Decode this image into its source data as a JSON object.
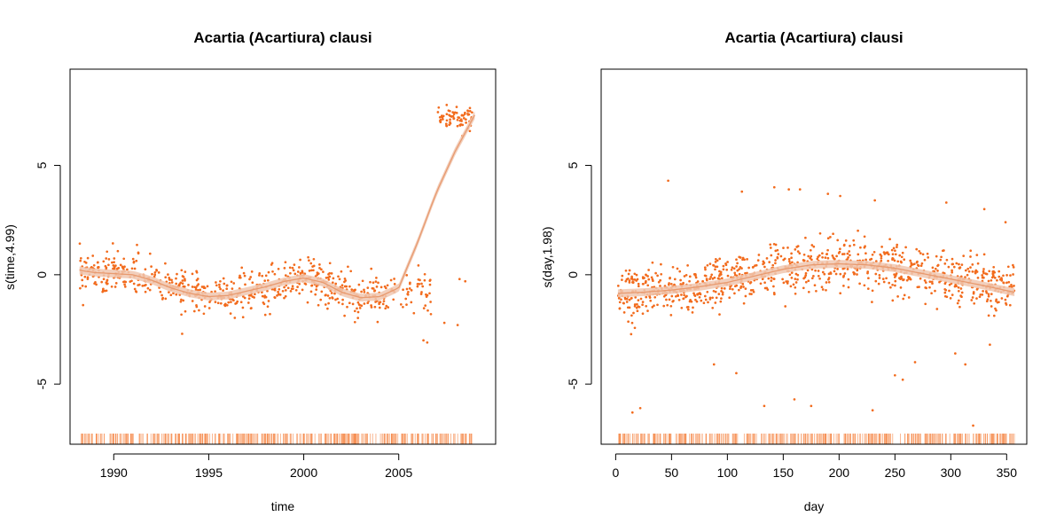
{
  "colors": {
    "points": "#f26b1d",
    "rug": "#f58a4b",
    "smooth": "#e89a6f",
    "band": "#f0c7b0",
    "axis": "#000000"
  },
  "chart_data": [
    {
      "type": "scatter",
      "title": "Acartia (Acartiura) clausi",
      "xlabel": "time",
      "ylabel": "s(time,4.99)",
      "xlim": [
        1987.7,
        2010.1
      ],
      "ylim": [
        -7.75,
        9.4
      ],
      "xticks": [
        1990,
        1995,
        2000,
        2005
      ],
      "yticks": [
        -5,
        0,
        5
      ],
      "grid": false,
      "smooth": {
        "name": "fit",
        "x": [
          1988.2,
          1989,
          1990,
          1991,
          1992,
          1993,
          1994,
          1995,
          1996,
          1997,
          1998,
          1999,
          2000,
          2001,
          2002,
          2003,
          2004,
          2005,
          2006,
          2007,
          2008,
          2009
        ],
        "y": [
          0.2,
          0.1,
          0.05,
          0.0,
          -0.25,
          -0.6,
          -0.85,
          -1.0,
          -0.95,
          -0.75,
          -0.55,
          -0.3,
          -0.15,
          -0.35,
          -0.8,
          -1.05,
          -1.0,
          -0.6,
          1.5,
          3.8,
          5.7,
          7.3
        ]
      },
      "scatter_groups": [
        {
          "x_range": [
            1988.2,
            2004.8
          ],
          "y_trend": "smooth",
          "spread": 0.75,
          "count": 650
        },
        {
          "x_range": [
            2005,
            2006.7
          ],
          "y_trend": "flat",
          "center": -0.8,
          "spread": 0.8,
          "count": 40
        },
        {
          "x_range": [
            2007,
            2008.9
          ],
          "y_trend": "flat",
          "center": 7.2,
          "spread": 0.5,
          "count": 70
        }
      ],
      "outliers": [
        {
          "x": 1993.6,
          "y": -2.7
        },
        {
          "x": 2006.3,
          "y": -3.0
        },
        {
          "x": 2006.5,
          "y": -3.1
        },
        {
          "x": 2007.4,
          "y": -2.2
        },
        {
          "x": 2008.1,
          "y": -2.3
        },
        {
          "x": 2008.2,
          "y": -0.2
        },
        {
          "x": 2008.5,
          "y": -0.3
        }
      ],
      "rug_range": [
        1988.2,
        2008.9
      ]
    },
    {
      "type": "scatter",
      "title": "Acartia (Acartiura) clausi",
      "xlabel": "day",
      "ylabel": "s(day,1.98)",
      "xlim": [
        -13,
        368
      ],
      "ylim": [
        -7.75,
        9.4
      ],
      "xticks": [
        0,
        50,
        100,
        150,
        200,
        250,
        300,
        350
      ],
      "yticks": [
        -5,
        0,
        5
      ],
      "grid": false,
      "smooth": {
        "name": "fit",
        "x": [
          2,
          25,
          50,
          75,
          100,
          125,
          150,
          175,
          200,
          225,
          250,
          275,
          300,
          325,
          357
        ],
        "y": [
          -0.85,
          -0.8,
          -0.7,
          -0.55,
          -0.35,
          -0.05,
          0.25,
          0.45,
          0.5,
          0.45,
          0.3,
          0.05,
          -0.2,
          -0.45,
          -0.8
        ]
      },
      "scatter_groups": [
        {
          "x_range": [
            2,
            357
          ],
          "y_trend": "smooth",
          "spread": 0.95,
          "count": 1000
        }
      ],
      "outliers": [
        {
          "x": 47,
          "y": 4.3
        },
        {
          "x": 113,
          "y": 3.8
        },
        {
          "x": 142,
          "y": 4.0
        },
        {
          "x": 155,
          "y": 3.9
        },
        {
          "x": 165,
          "y": 3.9
        },
        {
          "x": 190,
          "y": 3.7
        },
        {
          "x": 201,
          "y": 3.6
        },
        {
          "x": 232,
          "y": 3.4
        },
        {
          "x": 296,
          "y": 3.3
        },
        {
          "x": 330,
          "y": 3.0
        },
        {
          "x": 349,
          "y": 2.4
        },
        {
          "x": 15,
          "y": -6.3
        },
        {
          "x": 22,
          "y": -6.1
        },
        {
          "x": 88,
          "y": -4.1
        },
        {
          "x": 108,
          "y": -4.5
        },
        {
          "x": 133,
          "y": -6.0
        },
        {
          "x": 160,
          "y": -5.7
        },
        {
          "x": 175,
          "y": -6.0
        },
        {
          "x": 230,
          "y": -6.2
        },
        {
          "x": 250,
          "y": -4.6
        },
        {
          "x": 257,
          "y": -4.8
        },
        {
          "x": 268,
          "y": -4.0
        },
        {
          "x": 304,
          "y": -3.6
        },
        {
          "x": 313,
          "y": -4.1
        },
        {
          "x": 320,
          "y": -6.9
        },
        {
          "x": 335,
          "y": -3.2
        }
      ],
      "rug_range": [
        2,
        357
      ]
    }
  ]
}
